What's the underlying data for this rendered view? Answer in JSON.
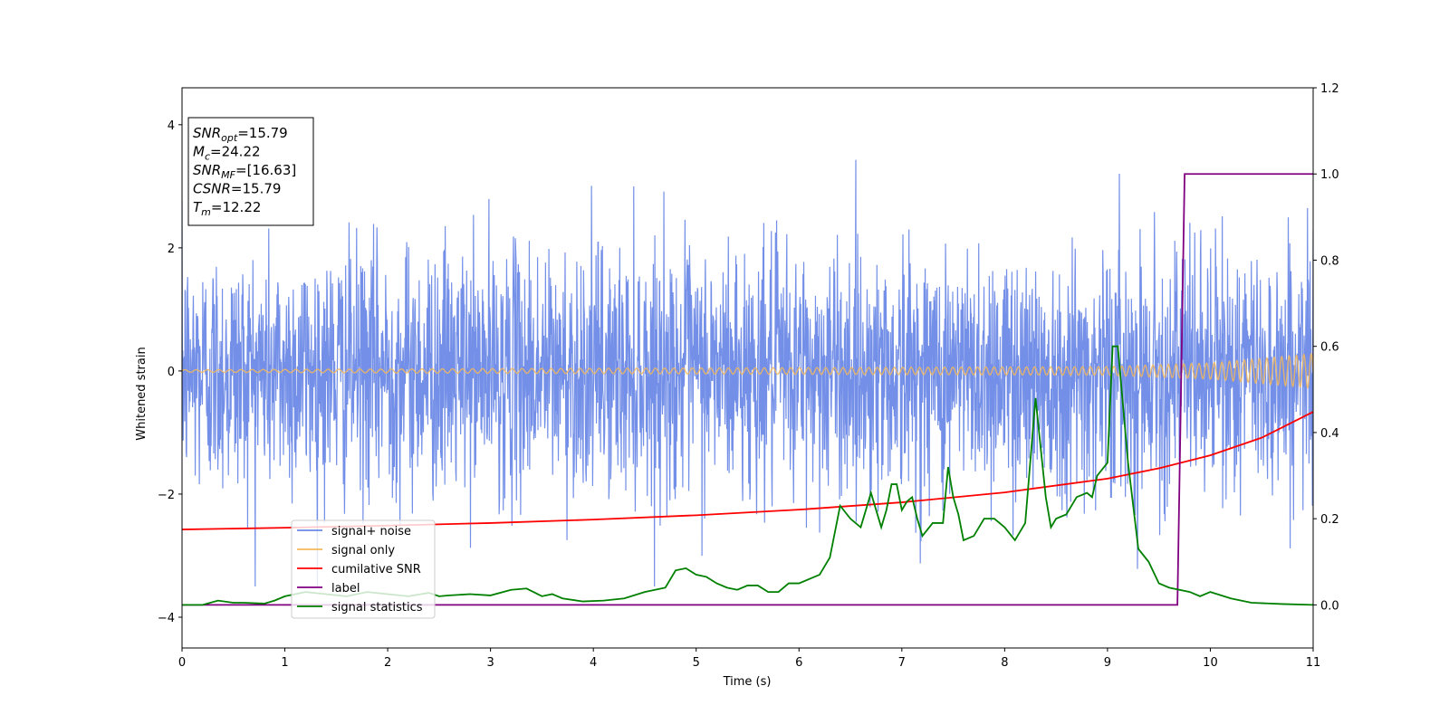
{
  "chart_data": {
    "type": "line",
    "xlabel": "Time (s)",
    "ylabel": "Whitened strain",
    "xlim": [
      0,
      11
    ],
    "ylim": [
      -4.5,
      4.6
    ],
    "y2lim": [
      -0.1,
      1.2
    ],
    "x_ticks": [
      "0",
      "1",
      "2",
      "3",
      "4",
      "5",
      "6",
      "7",
      "8",
      "9",
      "10",
      "11"
    ],
    "y_ticks": [
      "−4",
      "−2",
      "0",
      "2",
      "4"
    ],
    "y2_ticks": [
      "0.0",
      "0.2",
      "0.4",
      "0.6",
      "0.8",
      "1.0",
      "1.2"
    ],
    "grid": false,
    "legend_position": "lower-left",
    "colors": {
      "noise": "#6b89e6",
      "signal": "#f5b95a",
      "csnr": "#ff0000",
      "label": "#800080",
      "stats": "#008000"
    },
    "info_box": [
      {
        "sym": "SNR",
        "sub": "opt",
        "val": "=15.79"
      },
      {
        "sym": "M",
        "sub": "c",
        "val": "=24.22"
      },
      {
        "sym": "SNR",
        "sub": "MF",
        "val": "=[16.63]"
      },
      {
        "sym": "CSNR",
        "sub": "",
        "val": "=15.79"
      },
      {
        "sym": "T",
        "sub": "m",
        "val": "=12.22"
      }
    ],
    "series": [
      {
        "name": "signal+ noise",
        "axis": "left",
        "description_values": {
          "mean": 0,
          "std": 1.0,
          "range": [
            -3.5,
            3.5
          ]
        }
      },
      {
        "name": "signal only",
        "axis": "left",
        "amplitude_envelope": {
          "x": [
            0,
            9,
            10,
            11
          ],
          "y": [
            0.02,
            0.07,
            0.13,
            0.28
          ]
        }
      },
      {
        "name": "cumilative SNR",
        "axis": "right",
        "x": [
          0,
          1,
          2,
          3,
          4,
          5,
          6,
          7,
          8,
          9,
          9.5,
          10,
          10.5,
          11
        ],
        "y": [
          0.175,
          0.179,
          0.184,
          0.19,
          0.198,
          0.208,
          0.221,
          0.238,
          0.261,
          0.293,
          0.317,
          0.347,
          0.388,
          0.448
        ]
      },
      {
        "name": "label",
        "axis": "right",
        "x": [
          0,
          9.68,
          9.75,
          11
        ],
        "y": [
          0,
          0,
          1,
          1
        ]
      },
      {
        "name": "signal statistics",
        "axis": "right",
        "x": [
          0,
          0.2,
          0.35,
          0.5,
          0.6,
          0.8,
          0.9,
          1.0,
          1.1,
          1.2,
          1.4,
          1.6,
          1.8,
          2.0,
          2.2,
          2.4,
          2.5,
          2.6,
          2.8,
          3.0,
          3.2,
          3.35,
          3.5,
          3.6,
          3.7,
          3.9,
          4.1,
          4.3,
          4.5,
          4.7,
          4.8,
          4.9,
          5.0,
          5.1,
          5.2,
          5.3,
          5.4,
          5.5,
          5.6,
          5.7,
          5.8,
          5.9,
          6.0,
          6.1,
          6.2,
          6.3,
          6.4,
          6.5,
          6.6,
          6.7,
          6.8,
          6.85,
          6.9,
          6.95,
          7.0,
          7.05,
          7.1,
          7.15,
          7.2,
          7.3,
          7.4,
          7.45,
          7.5,
          7.55,
          7.6,
          7.7,
          7.8,
          7.9,
          8.0,
          8.1,
          8.2,
          8.3,
          8.4,
          8.45,
          8.5,
          8.6,
          8.7,
          8.8,
          8.85,
          8.9,
          9.0,
          9.05,
          9.1,
          9.2,
          9.3,
          9.4,
          9.5,
          9.6,
          9.8,
          9.9,
          10.0,
          10.2,
          10.4,
          10.7,
          11.0
        ],
        "y": [
          0.0,
          0.0,
          0.01,
          0.005,
          0.005,
          0.003,
          0.01,
          0.02,
          0.025,
          0.03,
          0.025,
          0.02,
          0.03,
          0.025,
          0.02,
          0.028,
          0.02,
          0.022,
          0.025,
          0.022,
          0.035,
          0.038,
          0.02,
          0.025,
          0.015,
          0.008,
          0.01,
          0.015,
          0.03,
          0.04,
          0.08,
          0.085,
          0.07,
          0.065,
          0.05,
          0.04,
          0.035,
          0.045,
          0.045,
          0.03,
          0.03,
          0.05,
          0.05,
          0.06,
          0.07,
          0.11,
          0.23,
          0.2,
          0.18,
          0.26,
          0.18,
          0.22,
          0.28,
          0.28,
          0.22,
          0.24,
          0.25,
          0.2,
          0.16,
          0.19,
          0.19,
          0.32,
          0.25,
          0.21,
          0.15,
          0.16,
          0.2,
          0.2,
          0.18,
          0.15,
          0.19,
          0.48,
          0.25,
          0.18,
          0.2,
          0.21,
          0.25,
          0.26,
          0.25,
          0.3,
          0.33,
          0.6,
          0.6,
          0.33,
          0.13,
          0.1,
          0.05,
          0.04,
          0.03,
          0.02,
          0.03,
          0.015,
          0.005,
          0.002,
          0.0
        ]
      }
    ]
  }
}
